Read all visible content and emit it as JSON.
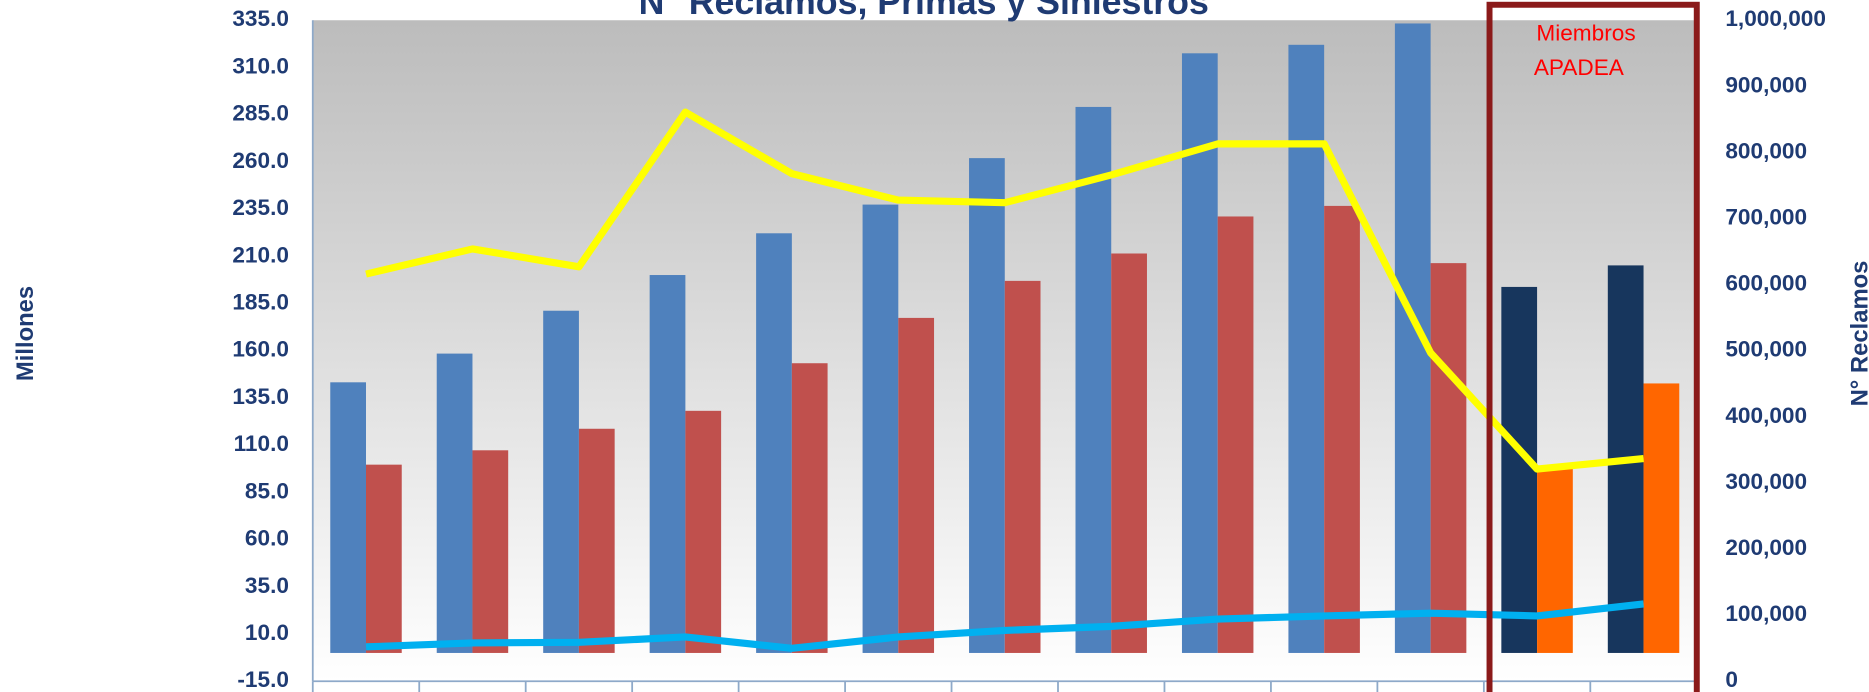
{
  "chart_data": {
    "type": "combo",
    "title": "N° Reclamos, Primas y Siniestros",
    "ylabel": "Millones",
    "y2label": "N° Reclamos",
    "annotation": [
      "Miembros",
      "APADEA"
    ],
    "categories": [
      null,
      null,
      null,
      null,
      null,
      null,
      null,
      null,
      null,
      null,
      null,
      null,
      null
    ],
    "ylim": [
      -15,
      335
    ],
    "yticks": [
      {
        "value": -15,
        "label": "-15.0"
      },
      {
        "value": 10,
        "label": "10.0"
      },
      {
        "value": 35,
        "label": "35.0"
      },
      {
        "value": 60,
        "label": "60.0"
      },
      {
        "value": 85,
        "label": "85.0"
      },
      {
        "value": 110,
        "label": "110.0"
      },
      {
        "value": 135,
        "label": "135.0"
      },
      {
        "value": 160,
        "label": "160.0"
      },
      {
        "value": 185,
        "label": "185.0"
      },
      {
        "value": 210,
        "label": "210.0"
      },
      {
        "value": 235,
        "label": "235.0"
      },
      {
        "value": 260,
        "label": "260.0"
      },
      {
        "value": 285,
        "label": "285.0"
      },
      {
        "value": 310,
        "label": "310.0"
      },
      {
        "value": 335,
        "label": "335.0"
      }
    ],
    "y2lim": [
      0,
      1000000
    ],
    "y2ticks": [
      0,
      {
        "value": 100000,
        "label": "100,000"
      },
      {
        "value": 200000,
        "label": "200,000"
      },
      {
        "value": 300000,
        "label": "300,000"
      },
      {
        "value": 400000,
        "label": "400,000"
      },
      {
        "value": 500000,
        "label": "500,000"
      },
      {
        "value": 600000,
        "label": "600,000"
      },
      {
        "value": 700000,
        "label": "700,000"
      },
      {
        "value": 800000,
        "label": "800,000"
      },
      {
        "value": 900000,
        "label": "900,000"
      },
      {
        "value": 1000000,
        "label": "1,000,000"
      }
    ],
    "series": [
      {
        "type": "bar",
        "axis": "y",
        "colors": [
          "#4f81bd",
          "#4f81bd",
          "#4f81bd",
          "#4f81bd",
          "#4f81bd",
          "#4f81bd",
          "#4f81bd",
          "#4f81bd",
          "#4f81bd",
          "#4f81bd",
          "#4f81bd",
          "#17365d",
          "#17365d"
        ],
        "values": [
          143.3,
          158.5,
          181.2,
          200.1,
          222.2,
          237.4,
          262,
          289.1,
          317.5,
          322,
          333.3,
          193.8,
          205.2
        ]
      },
      {
        "type": "bar",
        "axis": "y",
        "colors": [
          "#c0504d",
          "#c0504d",
          "#c0504d",
          "#c0504d",
          "#c0504d",
          "#c0504d",
          "#c0504d",
          "#c0504d",
          "#c0504d",
          "#c0504d",
          "#c0504d",
          "#ff6600",
          "#ff6600"
        ],
        "values": [
          99.7,
          107.3,
          118.7,
          128.2,
          153.4,
          177.4,
          197,
          211.5,
          231.1,
          236.7,
          206.4,
          99.1,
          142.7
        ]
      },
      {
        "type": "line",
        "axis": "y2",
        "color": "#ffff00",
        "values": [
          616000,
          654000,
          627000,
          861000,
          768000,
          728000,
          724000,
          766000,
          813000,
          813000,
          497000,
          321000,
          337000
        ]
      },
      {
        "type": "line",
        "axis": "y2",
        "color": "#00b0f0",
        "values": [
          52000,
          58000,
          59000,
          67000,
          50000,
          67000,
          77000,
          83000,
          94000,
          99000,
          103000,
          99000,
          117000
        ]
      }
    ]
  }
}
